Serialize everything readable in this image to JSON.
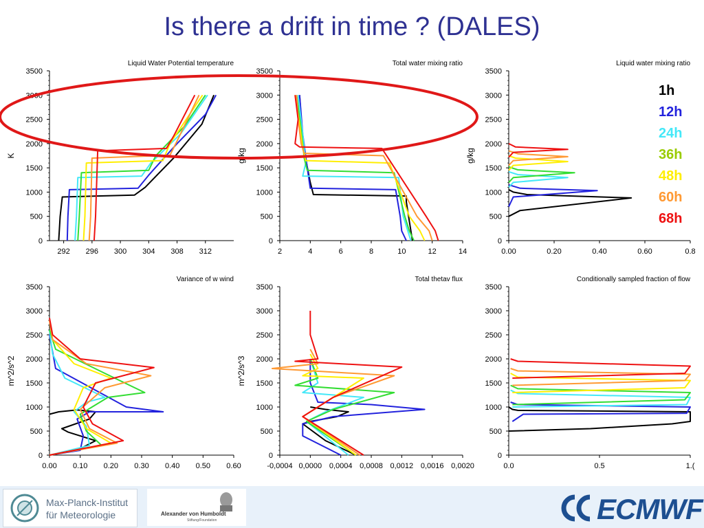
{
  "slide": {
    "title": "Is there a drift in time ? (DALES)"
  },
  "legend": {
    "entries": [
      {
        "label": "1h",
        "color": "#000000"
      },
      {
        "label": "12h",
        "color": "#2222dd"
      },
      {
        "label": "24h",
        "color": "#44e8f8"
      },
      {
        "label": "36h",
        "color": "#99cc00"
      },
      {
        "label": "48h",
        "color": "#ffee00"
      },
      {
        "label": "60h",
        "color": "#ff9933"
      },
      {
        "label": "68h",
        "color": "#ee1111"
      }
    ]
  },
  "footer": {
    "mpi_line1": "Max-Planck-Institut",
    "mpi_line2": "für Meteorologie",
    "avh_name": "Alexander von Humboldt",
    "avh_sub": "Stiftung/Foundation",
    "ecmwf": "ECMWF"
  },
  "colors": {
    "1h": "#000000",
    "12h": "#2222dd",
    "24h": "#44e8f8",
    "36h": "#33dd33",
    "48h": "#ffee00",
    "60h": "#ff9933",
    "68h": "#ee1111",
    "title": "#2e3192",
    "annotation_ellipse": "#e01818"
  },
  "chart_data": [
    {
      "type": "line",
      "title": "Liquid Water Potential temperature",
      "ylabel": "K",
      "xlim": [
        290,
        316
      ],
      "ylim": [
        0,
        3500
      ],
      "xticks": [
        292,
        296,
        300,
        304,
        308,
        312
      ],
      "xticklabels": [
        "292",
        "296",
        "300",
        "304",
        "308",
        "312"
      ],
      "yticks": [
        0,
        500,
        1000,
        1500,
        2000,
        2500,
        3000,
        3500
      ],
      "series": [
        {
          "name": "1h",
          "x": [
            291.3,
            291.5,
            291.8,
            302.0,
            303.5,
            307.5,
            311.5,
            313.2
          ],
          "y": [
            0,
            500,
            900,
            940,
            1100,
            1700,
            2400,
            3000
          ]
        },
        {
          "name": "12h",
          "x": [
            292.5,
            292.6,
            292.8,
            302.5,
            304.0,
            308.0,
            312.0,
            313.5
          ],
          "y": [
            0,
            500,
            1050,
            1080,
            1350,
            2000,
            2600,
            3000
          ]
        },
        {
          "name": "24h",
          "x": [
            293.6,
            293.8,
            294.0,
            303.0,
            304.3,
            308.5,
            312.3
          ],
          "y": [
            0,
            500,
            1300,
            1330,
            1600,
            2200,
            3000
          ]
        },
        {
          "name": "36h",
          "x": [
            294.0,
            294.2,
            294.5,
            304.0,
            305.0,
            309.0,
            312.0
          ],
          "y": [
            0,
            500,
            1400,
            1450,
            1750,
            2350,
            3000
          ]
        },
        {
          "name": "48h",
          "x": [
            294.8,
            295.0,
            295.2,
            306.0,
            307.0,
            311.6
          ],
          "y": [
            0,
            500,
            1600,
            1650,
            2000,
            3000
          ]
        },
        {
          "name": "60h",
          "x": [
            295.6,
            295.8,
            296.0,
            307.0,
            308.0,
            311.1
          ],
          "y": [
            0,
            500,
            1700,
            1760,
            2050,
            3000
          ]
        },
        {
          "name": "68h",
          "x": [
            296.3,
            296.5,
            296.8,
            306.5,
            307.5,
            310.5
          ],
          "y": [
            0,
            500,
            1850,
            1900,
            2150,
            3000
          ]
        }
      ]
    },
    {
      "type": "line",
      "title": "Total water mixing ratio",
      "ylabel": "g/kg",
      "xlim": [
        2,
        14
      ],
      "ylim": [
        0,
        3500
      ],
      "xticks": [
        2,
        4,
        6,
        8,
        10,
        12,
        14
      ],
      "xticklabels": [
        "2",
        "4",
        "6",
        "8",
        "10",
        "12",
        "14"
      ],
      "yticks": [
        0,
        500,
        1000,
        1500,
        2000,
        2500,
        3000,
        3500
      ],
      "series": [
        {
          "name": "1h",
          "x": [
            10.7,
            10.5,
            10.3,
            10.3,
            4.2,
            4.0,
            3.5,
            3.3
          ],
          "y": [
            0,
            400,
            800,
            920,
            950,
            1200,
            2000,
            3000
          ]
        },
        {
          "name": "12h",
          "x": [
            10.3,
            10.0,
            9.9,
            9.6,
            4.0,
            3.8,
            3.5,
            3.3
          ],
          "y": [
            0,
            200,
            500,
            1050,
            1080,
            1500,
            2200,
            3000
          ]
        },
        {
          "name": "24h",
          "x": [
            10.6,
            10.4,
            10.1,
            9.8,
            3.5,
            3.7,
            3.5,
            3.2
          ],
          "y": [
            0,
            200,
            500,
            1300,
            1330,
            1600,
            2200,
            3000
          ]
        },
        {
          "name": "36h",
          "x": [
            10.8,
            10.5,
            10.2,
            9.5,
            3.8,
            3.6,
            3.4,
            3.1
          ],
          "y": [
            0,
            200,
            500,
            1400,
            1450,
            1700,
            2300,
            3000
          ]
        },
        {
          "name": "48h",
          "x": [
            11.5,
            11.2,
            10.5,
            9.2,
            3.7,
            3.5,
            3.3,
            3.0
          ],
          "y": [
            0,
            200,
            500,
            1600,
            1650,
            1900,
            2400,
            3000
          ]
        },
        {
          "name": "60h",
          "x": [
            12.0,
            11.8,
            11.0,
            8.8,
            3.6,
            3.4,
            3.2,
            3.1
          ],
          "y": [
            0,
            200,
            500,
            1750,
            1800,
            2000,
            2500,
            3000
          ]
        },
        {
          "name": "68h",
          "x": [
            12.4,
            12.2,
            11.6,
            8.7,
            3.3,
            3.0,
            3.2,
            3.0
          ],
          "y": [
            0,
            200,
            500,
            1900,
            1930,
            2000,
            2500,
            3000
          ]
        }
      ]
    },
    {
      "type": "line",
      "title": "Liquid water mixing ratio",
      "ylabel": "g/kg",
      "xlim": [
        0,
        0.8
      ],
      "ylim": [
        0,
        3500
      ],
      "xticks": [
        0,
        0.2,
        0.4,
        0.6,
        0.8
      ],
      "xticklabels": [
        "0.00",
        "0.20",
        "0.40",
        "0.60",
        "0.8"
      ],
      "yticks": [
        0,
        500,
        1000,
        1500,
        2000,
        2500,
        3000,
        3500
      ],
      "series": [
        {
          "name": "1h",
          "x": [
            0,
            0.05,
            0.54,
            0.08,
            0.02,
            0
          ],
          "y": [
            500,
            620,
            880,
            950,
            1000,
            1050
          ]
        },
        {
          "name": "12h",
          "x": [
            0,
            0.02,
            0.39,
            0.05,
            0
          ],
          "y": [
            700,
            900,
            1030,
            1080,
            1150
          ]
        },
        {
          "name": "24h",
          "x": [
            0,
            0.02,
            0.26,
            0.04,
            0
          ],
          "y": [
            1100,
            1200,
            1300,
            1360,
            1420
          ]
        },
        {
          "name": "36h",
          "x": [
            0,
            0.02,
            0.29,
            0.04,
            0
          ],
          "y": [
            1200,
            1300,
            1400,
            1460,
            1520
          ]
        },
        {
          "name": "48h",
          "x": [
            0,
            0.02,
            0.26,
            0.03,
            0
          ],
          "y": [
            1450,
            1550,
            1630,
            1700,
            1750
          ]
        },
        {
          "name": "60h",
          "x": [
            0,
            0.02,
            0.26,
            0.04,
            0
          ],
          "y": [
            1550,
            1650,
            1730,
            1790,
            1850
          ]
        },
        {
          "name": "68h",
          "x": [
            0,
            0.02,
            0.26,
            0.03,
            0
          ],
          "y": [
            1720,
            1820,
            1880,
            1930,
            2000
          ]
        }
      ]
    },
    {
      "type": "line",
      "title": "Variance of w wind",
      "ylabel": "m^2/s^2",
      "xlim": [
        0,
        0.6
      ],
      "ylim": [
        0,
        3500
      ],
      "xticks": [
        0,
        0.1,
        0.2,
        0.3,
        0.4,
        0.5,
        0.6
      ],
      "xticklabels": [
        "0.00",
        "0.10",
        "0.20",
        "0.30",
        "0.40",
        "0.50",
        "0.60"
      ],
      "yticks": [
        0,
        500,
        1000,
        1500,
        2000,
        2500,
        3000,
        3500
      ],
      "series": [
        {
          "name": "1h",
          "x": [
            0,
            0.09,
            0.15,
            0.06,
            0.04,
            0.13,
            0.15,
            0.09,
            0.03,
            0
          ],
          "y": [
            0,
            100,
            300,
            480,
            550,
            750,
            900,
            940,
            900,
            850
          ]
        },
        {
          "name": "12h",
          "x": [
            0,
            0.1,
            0.11,
            0.09,
            0.13,
            0.37,
            0.25,
            0.02,
            0
          ],
          "y": [
            0,
            100,
            400,
            750,
            900,
            900,
            1000,
            1800,
            2500
          ]
        },
        {
          "name": "24h",
          "x": [
            0,
            0.13,
            0.12,
            0.08,
            0.12,
            0.18,
            0.05,
            0.01,
            0
          ],
          "y": [
            0,
            200,
            600,
            900,
            1100,
            1200,
            1600,
            2100,
            2600
          ]
        },
        {
          "name": "36h",
          "x": [
            0,
            0.17,
            0.12,
            0.1,
            0.19,
            0.31,
            0.18,
            0.02,
            0
          ],
          "y": [
            0,
            200,
            500,
            850,
            1200,
            1300,
            1700,
            2200,
            2600
          ]
        },
        {
          "name": "48h",
          "x": [
            0,
            0.2,
            0.12,
            0.08,
            0.11,
            0.2,
            0.08,
            0.01,
            0
          ],
          "y": [
            0,
            250,
            550,
            950,
            1400,
            1600,
            1900,
            2400,
            2800
          ]
        },
        {
          "name": "60h",
          "x": [
            0,
            0.22,
            0.13,
            0.1,
            0.18,
            0.33,
            0.12,
            0.01,
            0
          ],
          "y": [
            0,
            250,
            550,
            950,
            1400,
            1650,
            1900,
            2400,
            2800
          ]
        },
        {
          "name": "68h",
          "x": [
            0,
            0.24,
            0.14,
            0.11,
            0.15,
            0.34,
            0.1,
            0.01,
            0
          ],
          "y": [
            0,
            300,
            650,
            1000,
            1500,
            1820,
            2000,
            2500,
            2850
          ]
        }
      ]
    },
    {
      "type": "line",
      "title": "Total thetav flux",
      "ylabel": "m^2/s^3",
      "xlim": [
        -0.0004,
        0.002
      ],
      "ylim": [
        0,
        3500
      ],
      "xticks": [
        -0.0004,
        0,
        0.0004,
        0.0008,
        0.0012,
        0.0016,
        0.002
      ],
      "xticklabels": [
        "-0,0004",
        "0,0000",
        "0,0004",
        "0,0008",
        "0,0012",
        "0,0016",
        "0,0020"
      ],
      "yticks": [
        0,
        500,
        1000,
        1500,
        2000,
        2500,
        3000,
        3500
      ],
      "series": [
        {
          "name": "1h",
          "x": [
            0.0006,
            0.0002,
            -0.0001,
            0,
            0.00035,
            0.0005,
            0.0002,
            0
          ],
          "y": [
            0,
            300,
            650,
            700,
            800,
            900,
            950,
            1000
          ]
        },
        {
          "name": "12h",
          "x": [
            0.0004,
            -0.0001,
            -0.0001,
            0.0003,
            0.0015,
            0.0008,
            0.0001,
            0,
            0
          ],
          "y": [
            0,
            400,
            650,
            800,
            950,
            1050,
            1100,
            1500,
            2000
          ]
        },
        {
          "name": "24h",
          "x": [
            0.0005,
            -5e-05,
            0.0002,
            0.0007,
            -0.0001,
            0.0001,
            0
          ],
          "y": [
            0,
            700,
            900,
            1200,
            1300,
            1500,
            2000
          ]
        },
        {
          "name": "36h",
          "x": [
            0.0006,
            -5e-05,
            0.0003,
            0.0011,
            -0.0002,
            0.0001,
            0
          ],
          "y": [
            0,
            700,
            950,
            1300,
            1450,
            1600,
            2000
          ]
        },
        {
          "name": "48h",
          "x": [
            0.0006,
            -0.0001,
            0.0002,
            0.0007,
            -0.0001,
            0.0001,
            0
          ],
          "y": [
            0,
            800,
            1100,
            1600,
            1650,
            1800,
            2100
          ]
        },
        {
          "name": "60h",
          "x": [
            0.00065,
            -0.0001,
            0.0003,
            0.0011,
            -0.0005,
            0.0001,
            0
          ],
          "y": [
            0,
            800,
            1200,
            1650,
            1800,
            1900,
            2200
          ]
        },
        {
          "name": "68h",
          "x": [
            0.0007,
            -0.0001,
            0.0003,
            0.0012,
            -0.0002,
            0.0001,
            0,
            0
          ],
          "y": [
            0,
            800,
            1200,
            1830,
            1950,
            2000,
            2500,
            3000
          ]
        }
      ]
    },
    {
      "type": "line",
      "title": "Conditionally sampled fraction of flow",
      "xlim": [
        0,
        1
      ],
      "ylim": [
        0,
        3500
      ],
      "xticks": [
        0,
        0.5,
        1
      ],
      "xticklabels": [
        "0.0",
        "0.5",
        "1.("
      ],
      "yticks": [
        0,
        500,
        1000,
        1500,
        2000,
        2500,
        3000,
        3500
      ],
      "series": [
        {
          "name": "1h",
          "x": [
            0,
            0.45,
            0.9,
            1.0,
            1.0,
            0.05,
            0.02,
            0
          ],
          "y": [
            500,
            550,
            650,
            700,
            900,
            930,
            950,
            1000
          ]
        },
        {
          "name": "12h",
          "x": [
            0.02,
            0.08,
            0.98,
            1.0,
            0.05,
            0.01
          ],
          "y": [
            700,
            850,
            870,
            1000,
            1050,
            1100
          ]
        },
        {
          "name": "24h",
          "x": [
            0.02,
            0.98,
            1.0,
            0.05,
            0.01
          ],
          "y": [
            1000,
            1050,
            1200,
            1280,
            1350
          ]
        },
        {
          "name": "36h",
          "x": [
            0.02,
            0.97,
            1.0,
            0.05,
            0.01
          ],
          "y": [
            1050,
            1150,
            1300,
            1380,
            1450
          ]
        },
        {
          "name": "48h",
          "x": [
            0.02,
            0.97,
            1.0,
            0.05,
            0.01
          ],
          "y": [
            1300,
            1400,
            1550,
            1620,
            1700
          ]
        },
        {
          "name": "60h",
          "x": [
            0.02,
            0.97,
            1.0,
            0.05,
            0.01
          ],
          "y": [
            1450,
            1550,
            1680,
            1750,
            1800
          ]
        },
        {
          "name": "68h",
          "x": [
            0.02,
            0.97,
            1.0,
            0.05,
            0.01
          ],
          "y": [
            1600,
            1700,
            1850,
            1950,
            2000
          ]
        }
      ]
    }
  ]
}
